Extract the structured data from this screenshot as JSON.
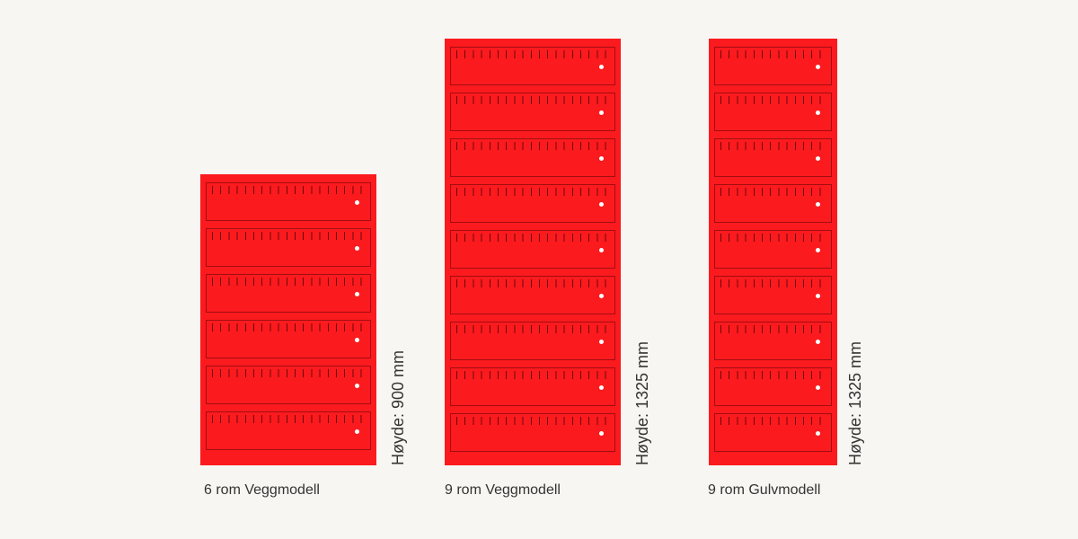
{
  "colors": {
    "background": "#f8f6f2",
    "cabinet": "#fb1a1e",
    "text": "#333333"
  },
  "models": [
    {
      "caption": "6 rom Veggmodell",
      "rooms": 6,
      "height_label": "Høyde: 900",
      "height_unit": "mm"
    },
    {
      "caption": "9 rom Veggmodell",
      "rooms": 9,
      "height_label": "Høyde: 1325",
      "height_unit": "mm"
    },
    {
      "caption": "9 rom Gulvmodell",
      "rooms": 9,
      "height_label": "Høyde: 1325",
      "height_unit": "mm"
    }
  ]
}
